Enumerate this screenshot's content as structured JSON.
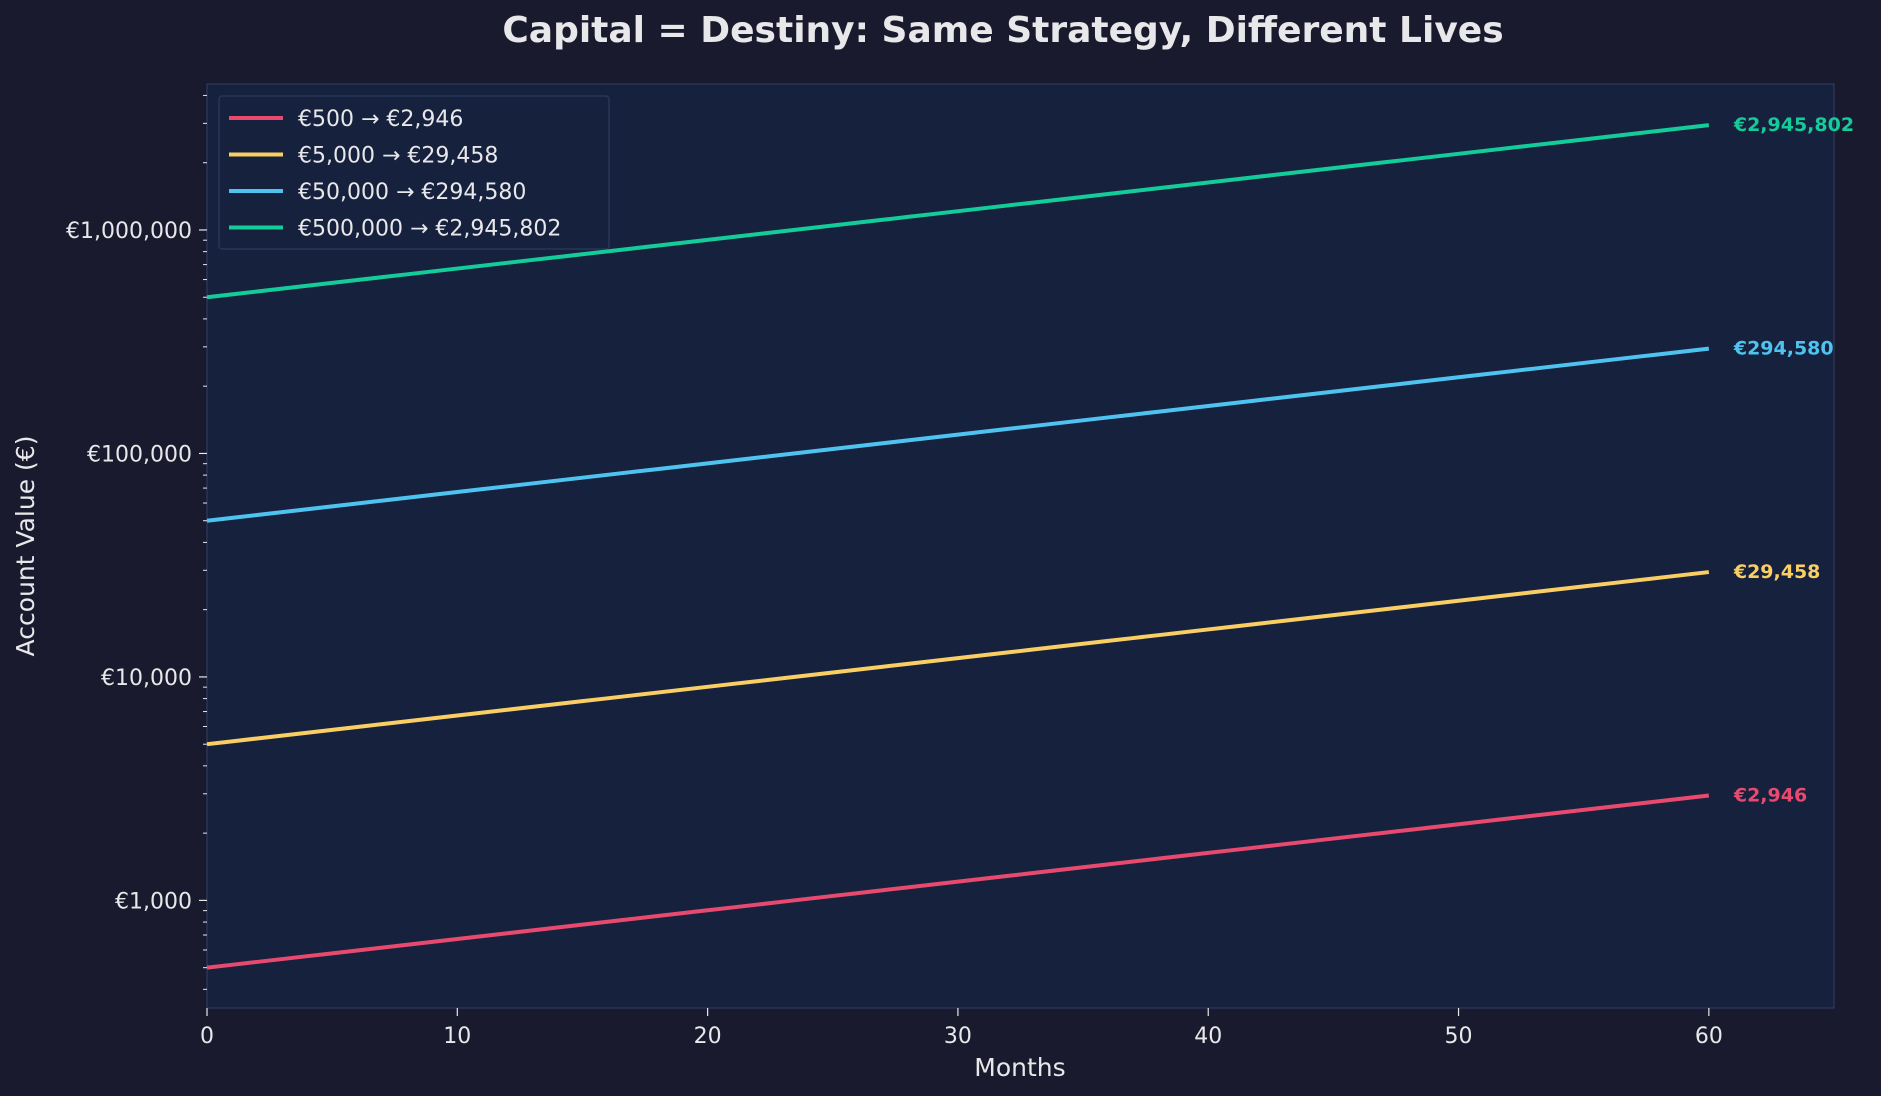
{
  "colors": {
    "background": "#1a1a2e",
    "plot_background": "#16213e",
    "text": "#e8e8ea",
    "axis": "#2e3a5c"
  },
  "chart_data": {
    "type": "line",
    "title": "Capital = Destiny: Same Strategy, Different Lives",
    "xlabel": "Months",
    "ylabel": "Account Value (€)",
    "xlim": [
      0,
      65
    ],
    "ylim": [
      330,
      4500000
    ],
    "yscale": "log",
    "grid": false,
    "legend_position": "upper-left",
    "x_ticks": [
      0,
      10,
      20,
      30,
      40,
      50,
      60
    ],
    "y_ticks": [
      {
        "value": 1000,
        "label": "€1,000"
      },
      {
        "value": 10000,
        "label": "€10,000"
      },
      {
        "value": 100000,
        "label": "€100,000"
      },
      {
        "value": 1000000,
        "label": "€1,000,000"
      }
    ],
    "series": [
      {
        "name": "€500 → €2,946",
        "color": "#e8496e",
        "start": 500,
        "end": 2946,
        "x_start": 0,
        "x_end": 60,
        "end_label": "€2,946"
      },
      {
        "name": "€5,000 → €29,458",
        "color": "#f9ce63",
        "start": 5000,
        "end": 29458,
        "x_start": 0,
        "x_end": 60,
        "end_label": "€29,458"
      },
      {
        "name": "€50,000 → €294,580",
        "color": "#4fc3f0",
        "start": 50000,
        "end": 294580,
        "x_start": 0,
        "x_end": 60,
        "end_label": "€294,580"
      },
      {
        "name": "€500,000 → €2,945,802",
        "color": "#14cc9a",
        "start": 500000,
        "end": 2945802,
        "x_start": 0,
        "x_end": 60,
        "end_label": "€2,945,802"
      }
    ]
  }
}
